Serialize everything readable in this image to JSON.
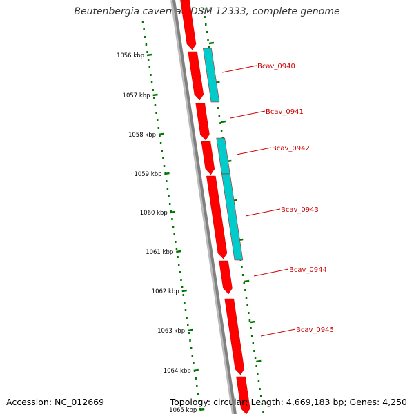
{
  "title": "Beutenbergia cavernae DSM 12333, complete genome",
  "footer": {
    "accession": "Accession: NC_012669",
    "summary": "Topology: circular; Length: 4,669,183 bp; Genes: 4,250"
  },
  "colors": {
    "forward_gene": "#ff0000",
    "reverse_gene": "#00cccc",
    "backbone": "#808080",
    "ticks": "#007700",
    "label": "#cc0000"
  },
  "ruler": [
    {
      "label": "1056 kbp"
    },
    {
      "label": "1057 kbp"
    },
    {
      "label": "1058 kbp"
    },
    {
      "label": "1059 kbp"
    },
    {
      "label": "1060 kbp"
    },
    {
      "label": "1061 kbp"
    },
    {
      "label": "1062 kbp"
    },
    {
      "label": "1063 kbp"
    },
    {
      "label": "1064 kbp"
    },
    {
      "label": "1065 kbp"
    }
  ],
  "gene_labels": [
    {
      "name": "Bcav_0940"
    },
    {
      "name": "Bcav_0941"
    },
    {
      "name": "Bcav_0942"
    },
    {
      "name": "Bcav_0943"
    },
    {
      "name": "Bcav_0944"
    },
    {
      "name": "Bcav_0945"
    }
  ]
}
